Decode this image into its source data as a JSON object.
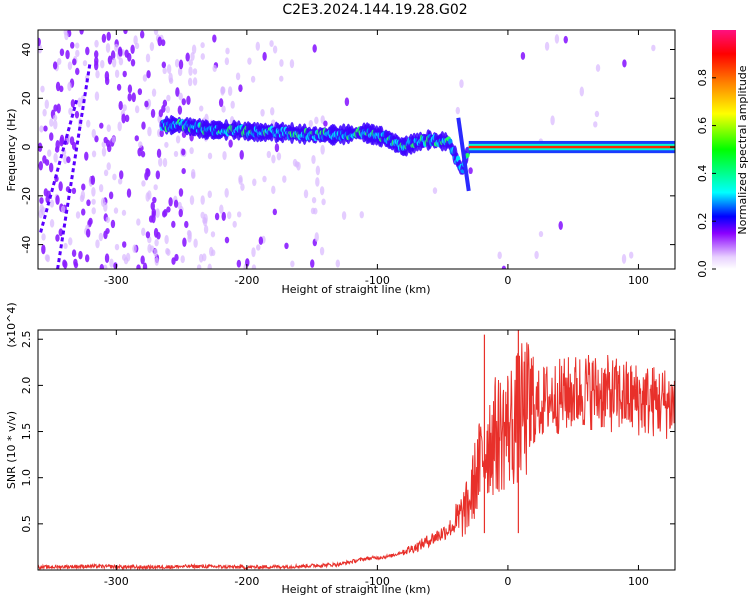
{
  "title": "C2E3.2024.144.19.28.G02",
  "chart_data": [
    {
      "type": "heatmap",
      "xlabel": "Height of straight line (km)",
      "ylabel": "Frequency (Hz)",
      "xlim": [
        -360,
        128
      ],
      "ylim": [
        -50,
        48
      ],
      "x_ticks": [
        "-300",
        "-200",
        "-100",
        "0",
        "100"
      ],
      "y_ticks": [
        "-40",
        "-20",
        "0",
        "20",
        "40"
      ],
      "colorbar": {
        "label": "Normalized spectral amplitude",
        "range": [
          0,
          1
        ],
        "ticks": [
          "0.0",
          "0.2",
          "0.4",
          "0.6",
          "0.8"
        ]
      },
      "signal_track": [
        {
          "x": -265,
          "f": 9
        },
        {
          "x": -250,
          "f": 9
        },
        {
          "x": -230,
          "f": 7
        },
        {
          "x": -210,
          "f": 7
        },
        {
          "x": -190,
          "f": 6
        },
        {
          "x": -170,
          "f": 6
        },
        {
          "x": -150,
          "f": 5
        },
        {
          "x": -130,
          "f": 5
        },
        {
          "x": -110,
          "f": 6
        },
        {
          "x": -95,
          "f": 4
        },
        {
          "x": -80,
          "f": 0
        },
        {
          "x": -70,
          "f": 2
        },
        {
          "x": -60,
          "f": 3
        },
        {
          "x": -45,
          "f": 2
        },
        {
          "x": -35,
          "f": -10
        },
        {
          "x": -30,
          "f": 0
        },
        {
          "x": -10,
          "f": 0
        },
        {
          "x": 0,
          "f": 2
        },
        {
          "x": 10,
          "f": 0
        },
        {
          "x": 50,
          "f": 0
        },
        {
          "x": 128,
          "f": 0
        }
      ]
    },
    {
      "type": "line",
      "xlabel": "Height of straight line (km)",
      "ylabel": "SNR (10 * v/v)",
      "y_multiplier": "(x10^4)",
      "xlim": [
        -360,
        128
      ],
      "ylim": [
        0,
        2.6
      ],
      "x_ticks": [
        "-300",
        "-200",
        "-100",
        "0",
        "100"
      ],
      "y_ticks": [
        "0.5",
        "1.0",
        "1.5",
        "2.0",
        "2.5"
      ],
      "color": "#e8302a",
      "series": [
        {
          "x": [
            -360,
            -320,
            -280,
            -240,
            -200,
            -160,
            -130,
            -110,
            -90,
            -70,
            -50,
            -40,
            -30,
            -25,
            -20,
            -15,
            -10,
            -5,
            0,
            5,
            10,
            20,
            30,
            45,
            60,
            80,
            100,
            128
          ],
          "y": [
            0.03,
            0.04,
            0.03,
            0.04,
            0.03,
            0.04,
            0.06,
            0.12,
            0.15,
            0.25,
            0.4,
            0.5,
            0.7,
            1.0,
            1.2,
            1.4,
            1.45,
            1.5,
            1.55,
            1.6,
            1.7,
            1.75,
            1.85,
            1.9,
            1.95,
            1.9,
            1.85,
            1.8
          ]
        }
      ],
      "spikes": [
        {
          "x": -18,
          "y": 2.55
        },
        {
          "x": 8,
          "y": 2.6
        }
      ]
    }
  ]
}
